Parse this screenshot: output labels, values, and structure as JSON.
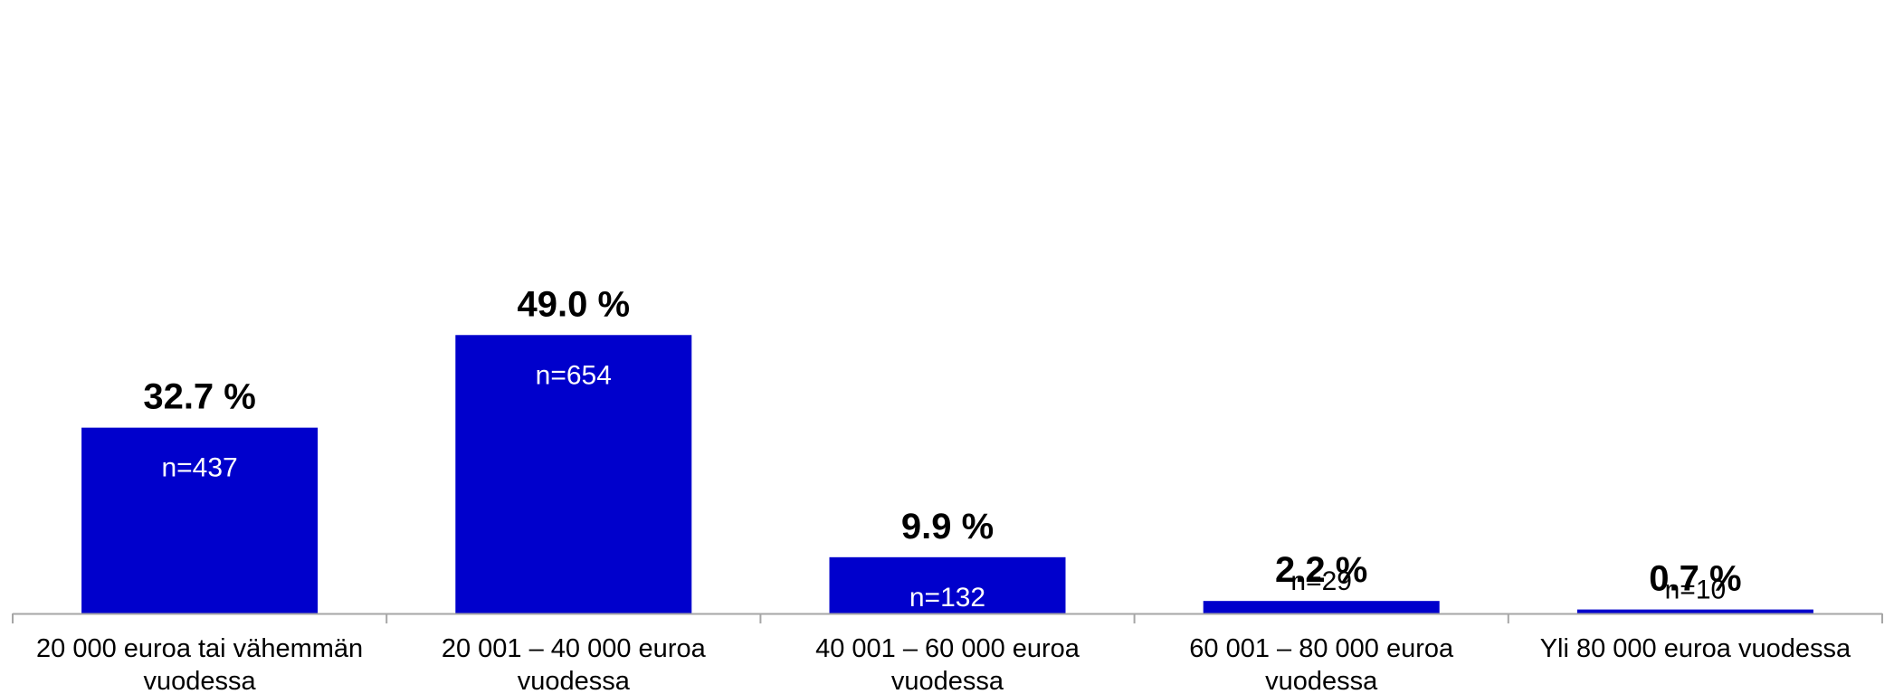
{
  "chart_data": {
    "type": "bar",
    "categories": [
      [
        "20 000 euroa tai vähemmän",
        "vuodessa"
      ],
      [
        "20 001 – 40 000 euroa",
        "vuodessa"
      ],
      [
        "40 001 – 60 000 euroa",
        "vuodessa"
      ],
      [
        "60 001 – 80 000 euroa",
        "vuodessa"
      ],
      [
        "Yli 80 000 euroa vuodessa"
      ]
    ],
    "values": [
      32.7,
      49.0,
      9.9,
      2.2,
      0.7
    ],
    "value_labels": [
      "32.7 %",
      "49.0 %",
      "9.9 %",
      "2.2 %",
      "0.7 %"
    ],
    "counts": [
      "n=437",
      "n=654",
      "n=132",
      "n=29",
      "n=10"
    ],
    "ylim": [
      0,
      50
    ],
    "grid": false,
    "colors": {
      "bar": "#0000CC",
      "axis": "#A6A6A6",
      "text": "#000000",
      "count_inside": "#FFFFFF"
    }
  }
}
